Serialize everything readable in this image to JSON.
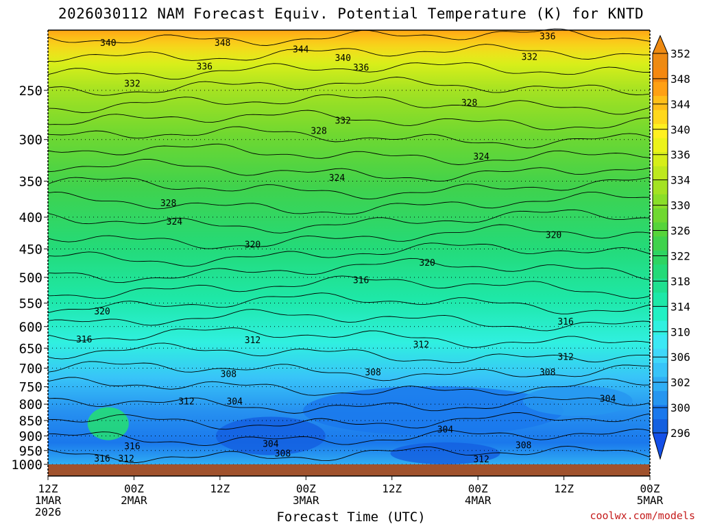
{
  "chart_data": {
    "type": "contour",
    "title": "2026030112 NAM Forecast Equiv. Potential Temperature (K) for KNTD",
    "xlabel": "Forecast Time (UTC)",
    "y_ticks": [
      250,
      300,
      350,
      400,
      450,
      500,
      550,
      600,
      650,
      700,
      750,
      800,
      850,
      900,
      950,
      1000
    ],
    "y_log_pressure": true,
    "ylim": [
      1000,
      200
    ],
    "x_ticks": [
      {
        "l1": "12Z",
        "l2": "1MAR",
        "l3": "2026"
      },
      {
        "l1": "00Z",
        "l2": "2MAR",
        "l3": ""
      },
      {
        "l1": "12Z",
        "l2": "",
        "l3": ""
      },
      {
        "l1": "00Z",
        "l2": "3MAR",
        "l3": ""
      },
      {
        "l1": "12Z",
        "l2": "",
        "l3": ""
      },
      {
        "l1": "00Z",
        "l2": "4MAR",
        "l3": ""
      },
      {
        "l1": "12Z",
        "l2": "",
        "l3": ""
      },
      {
        "l1": "00Z",
        "l2": "5MAR",
        "l3": ""
      }
    ],
    "colorbar": {
      "levels": [
        296,
        300,
        302,
        304,
        306,
        308,
        310,
        312,
        314,
        316,
        318,
        320,
        322,
        324,
        326,
        328,
        330,
        332,
        334,
        336,
        338,
        340,
        342,
        344,
        346,
        348,
        350,
        352
      ],
      "labels": [
        296,
        300,
        302,
        306,
        310,
        314,
        318,
        322,
        326,
        330,
        334,
        336,
        340,
        344,
        348,
        352
      ],
      "colors": [
        "#1460e0",
        "#1a78ec",
        "#2696f0",
        "#30aef4",
        "#38c4f8",
        "#40d8fa",
        "#3ce8f4",
        "#30f0e0",
        "#22f0c4",
        "#1ee8a8",
        "#20e090",
        "#24da78",
        "#2ed462",
        "#40d24c",
        "#56d43a",
        "#70d830",
        "#8ade28",
        "#a4e222",
        "#bee81e",
        "#d6ee1a",
        "#ecf21a",
        "#fff020",
        "#ffd81c",
        "#ffbe18",
        "#ffa014",
        "#f48810",
        "#ee8a12"
      ]
    },
    "contour_labels": [
      {
        "v": "340",
        "t": 0.1,
        "p": 210
      },
      {
        "v": "348",
        "t": 0.29,
        "p": 210
      },
      {
        "v": "344",
        "t": 0.42,
        "p": 215
      },
      {
        "v": "340",
        "t": 0.49,
        "p": 222
      },
      {
        "v": "336",
        "t": 0.52,
        "p": 230
      },
      {
        "v": "336",
        "t": 0.83,
        "p": 205
      },
      {
        "v": "332",
        "t": 0.8,
        "p": 221
      },
      {
        "v": "336",
        "t": 0.26,
        "p": 229
      },
      {
        "v": "332",
        "t": 0.14,
        "p": 244
      },
      {
        "v": "328",
        "t": 0.7,
        "p": 262
      },
      {
        "v": "332",
        "t": 0.49,
        "p": 280
      },
      {
        "v": "328",
        "t": 0.45,
        "p": 291
      },
      {
        "v": "324",
        "t": 0.72,
        "p": 320
      },
      {
        "v": "324",
        "t": 0.48,
        "p": 346
      },
      {
        "v": "328",
        "t": 0.2,
        "p": 380
      },
      {
        "v": "324",
        "t": 0.21,
        "p": 407
      },
      {
        "v": "320",
        "t": 0.34,
        "p": 443
      },
      {
        "v": "320",
        "t": 0.84,
        "p": 428
      },
      {
        "v": "320",
        "t": 0.63,
        "p": 474
      },
      {
        "v": "316",
        "t": 0.52,
        "p": 506
      },
      {
        "v": "320",
        "t": 0.09,
        "p": 568
      },
      {
        "v": "316",
        "t": 0.86,
        "p": 590
      },
      {
        "v": "316",
        "t": 0.06,
        "p": 630
      },
      {
        "v": "312",
        "t": 0.34,
        "p": 632
      },
      {
        "v": "312",
        "t": 0.62,
        "p": 642
      },
      {
        "v": "312",
        "t": 0.86,
        "p": 672
      },
      {
        "v": "308",
        "t": 0.3,
        "p": 716
      },
      {
        "v": "308",
        "t": 0.54,
        "p": 712
      },
      {
        "v": "308",
        "t": 0.83,
        "p": 712
      },
      {
        "v": "312",
        "t": 0.23,
        "p": 793
      },
      {
        "v": "304",
        "t": 0.31,
        "p": 793
      },
      {
        "v": "304",
        "t": 0.93,
        "p": 785
      },
      {
        "v": "304",
        "t": 0.66,
        "p": 880
      },
      {
        "v": "304",
        "t": 0.37,
        "p": 928
      },
      {
        "v": "316",
        "t": 0.14,
        "p": 936
      },
      {
        "v": "308",
        "t": 0.79,
        "p": 932
      },
      {
        "v": "308",
        "t": 0.39,
        "p": 962
      },
      {
        "v": "316",
        "t": 0.09,
        "p": 980
      },
      {
        "v": "312",
        "t": 0.13,
        "p": 980
      },
      {
        "v": "312",
        "t": 0.72,
        "p": 982
      }
    ],
    "source_credit": "coolwx.com/models"
  }
}
